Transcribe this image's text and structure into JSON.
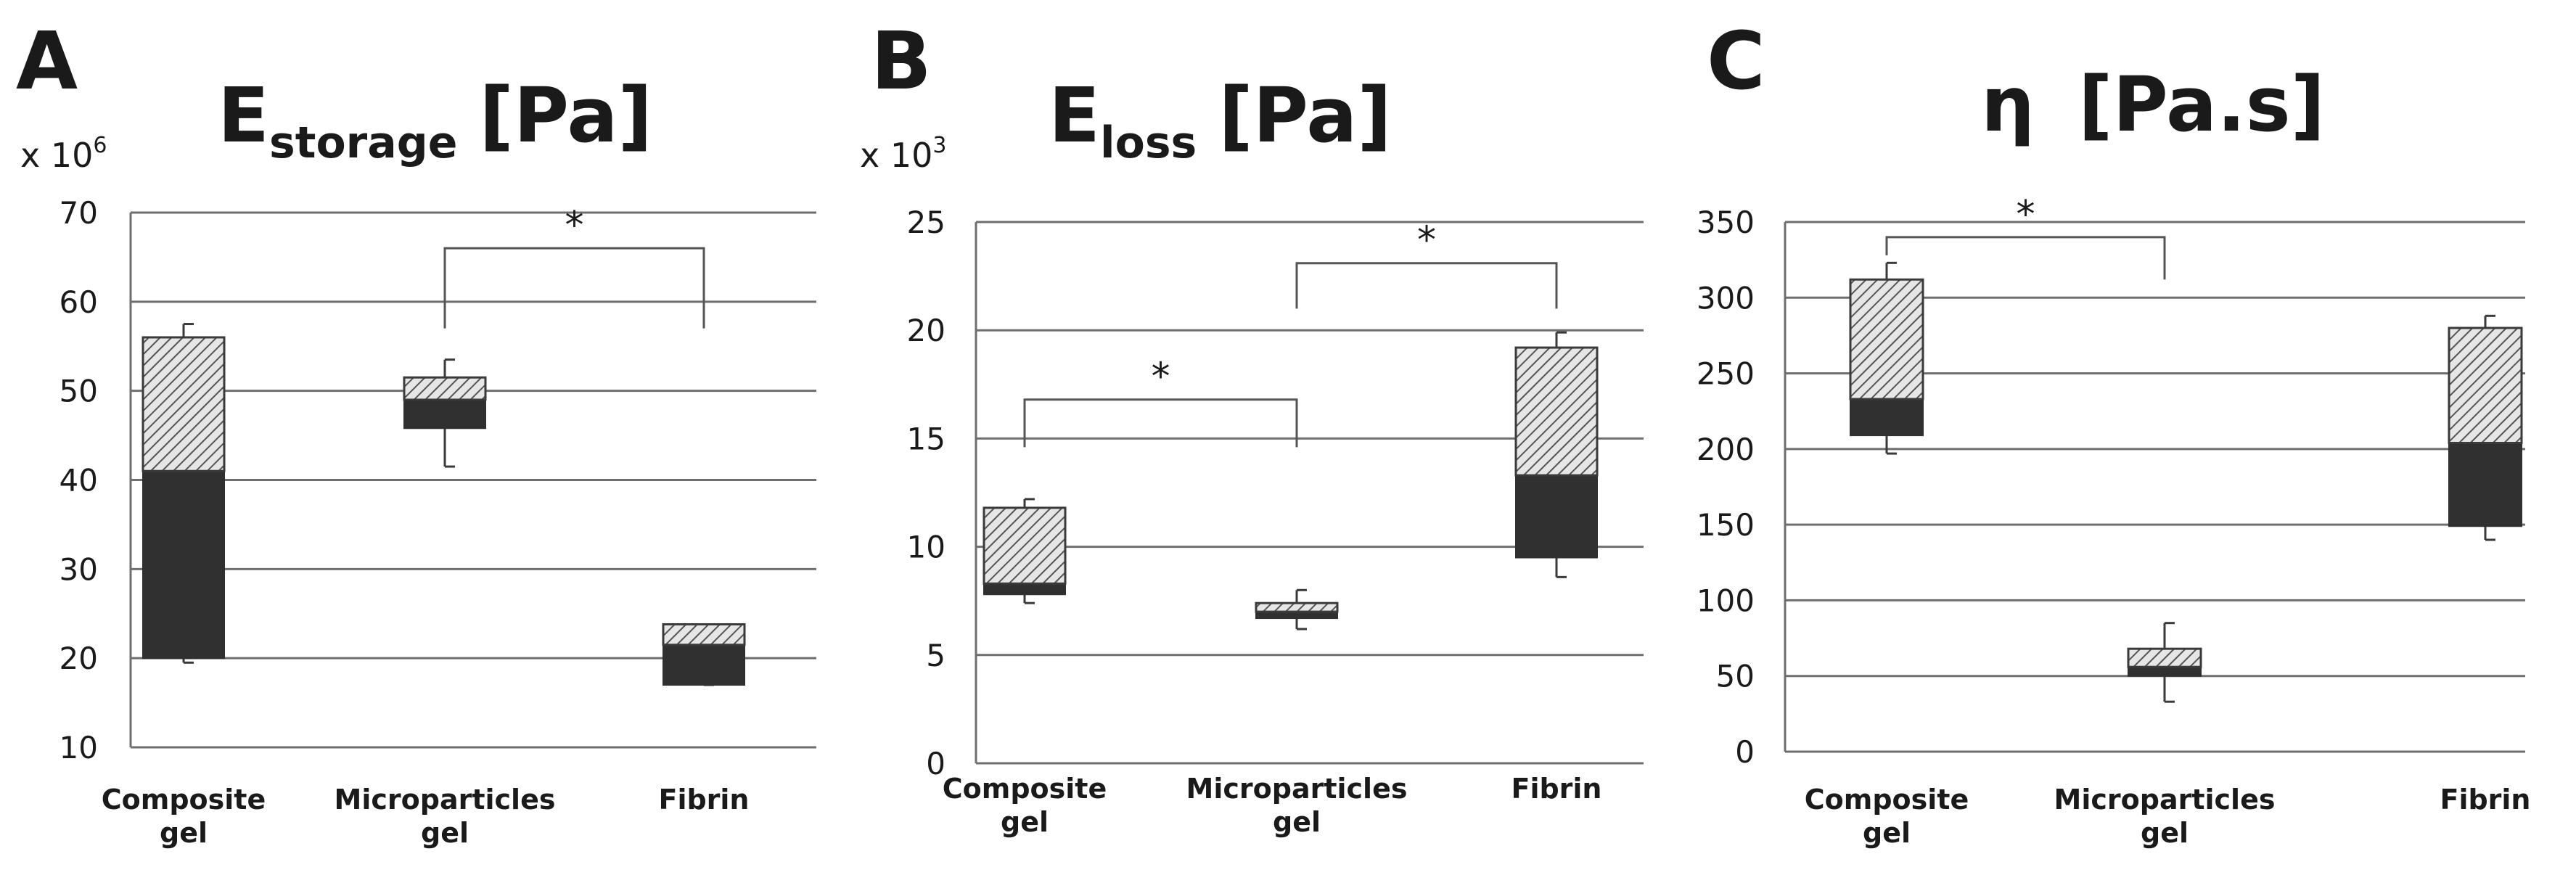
{
  "chart_data": [
    {
      "type": "bar",
      "panel_label": "A",
      "title_main": "E",
      "title_sub": "storage",
      "title_unit": "[Pa]",
      "multiplier": "x 10",
      "multiplier_exp": "6",
      "ylim": [
        10,
        70
      ],
      "yticks": [
        "10",
        "20",
        "30",
        "40",
        "50",
        "60",
        "70"
      ],
      "grid": true,
      "categories": [
        {
          "line1": "Composite",
          "line2": "gel"
        },
        {
          "line1": "Microparticles",
          "line2": "gel"
        },
        {
          "line1": "Fibrin",
          "line2": ""
        }
      ],
      "boxes": [
        {
          "low": 20,
          "median": 41,
          "high": 56,
          "whisker_low": 19.5,
          "whisker_high": 57.5
        },
        {
          "low": 45.8,
          "median": 49,
          "high": 51.5,
          "whisker_low": 41.5,
          "whisker_high": 53.5
        },
        {
          "low": 17,
          "median": 21.5,
          "high": 23.8,
          "whisker_low": 17,
          "whisker_high": 23.8
        }
      ],
      "significance": [
        {
          "from": 1,
          "to": 2,
          "level": 66,
          "drop_from": 57,
          "drop_to": 57,
          "label": "*"
        }
      ]
    },
    {
      "type": "bar",
      "panel_label": "B",
      "title_main": "E",
      "title_sub": "loss",
      "title_unit": "[Pa]",
      "multiplier": "x 10",
      "multiplier_exp": "3",
      "ylim": [
        0,
        25
      ],
      "yticks": [
        "0",
        "5",
        "10",
        "15",
        "20",
        "25"
      ],
      "grid": true,
      "categories": [
        {
          "line1": "Composite",
          "line2": "gel"
        },
        {
          "line1": "Microparticles",
          "line2": "gel"
        },
        {
          "line1": "Fibrin",
          "line2": ""
        }
      ],
      "boxes": [
        {
          "low": 7.8,
          "median": 8.3,
          "high": 11.8,
          "whisker_low": 7.4,
          "whisker_high": 12.2
        },
        {
          "low": 6.7,
          "median": 7.0,
          "high": 7.4,
          "whisker_low": 6.2,
          "whisker_high": 8.0
        },
        {
          "low": 9.5,
          "median": 13.3,
          "high": 19.2,
          "whisker_low": 8.6,
          "whisker_high": 19.9
        }
      ],
      "significance": [
        {
          "from": 0,
          "to": 1,
          "level": 16.8,
          "drop_from": 14.6,
          "drop_to": 14.6,
          "label": "*"
        },
        {
          "from": 1,
          "to": 2,
          "level": 23.1,
          "drop_from": 21.0,
          "drop_to": 21.0,
          "label": "*"
        }
      ]
    },
    {
      "type": "bar",
      "panel_label": "C",
      "title_main": "η",
      "title_sub": "",
      "title_unit": "[Pa.s]",
      "multiplier": "",
      "multiplier_exp": "",
      "ylim": [
        0,
        350
      ],
      "yticks": [
        "0",
        "50",
        "100",
        "150",
        "200",
        "250",
        "300",
        "350"
      ],
      "grid": true,
      "categories": [
        {
          "line1": "Composite",
          "line2": "gel"
        },
        {
          "line1": "Microparticles",
          "line2": "gel"
        },
        {
          "line1": "Fibrin",
          "line2": ""
        }
      ],
      "boxes": [
        {
          "low": 209,
          "median": 233,
          "high": 312,
          "whisker_low": 197,
          "whisker_high": 323
        },
        {
          "low": 50,
          "median": 56,
          "high": 68,
          "whisker_low": 33,
          "whisker_high": 85
        },
        {
          "low": 149,
          "median": 204,
          "high": 280,
          "whisker_low": 140,
          "whisker_high": 288
        }
      ],
      "significance": [
        {
          "from": 0,
          "to": 1,
          "level": 340,
          "drop_from": 328,
          "drop_to": 312,
          "label": "*"
        }
      ]
    }
  ]
}
